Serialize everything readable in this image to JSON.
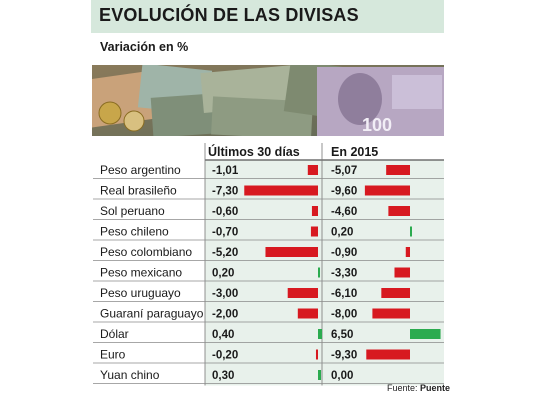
{
  "title": "EVOLUCIÓN DE LAS DIVISAS",
  "subtitle": "Variación en %",
  "source": {
    "prefix": "Fuente:",
    "name": "Puente"
  },
  "colors": {
    "negative": "#d71920",
    "positive": "#2bab4f",
    "header_bg": "#d6e8dc",
    "stripe": "#e8f1eb"
  },
  "chart_data": {
    "type": "bar",
    "categories": [
      "Peso argentino",
      "Real brasileño",
      "Sol peruano",
      "Peso chileno",
      "Peso colombiano",
      "Peso mexicano",
      "Peso uruguayo",
      "Guaraní paraguayo",
      "Dólar",
      "Euro",
      "Yuan chino"
    ],
    "series": [
      {
        "name": "Últimos 30 días",
        "values": [
          -1.01,
          -7.3,
          -0.6,
          -0.7,
          -5.2,
          0.2,
          -3.0,
          -2.0,
          0.4,
          -0.2,
          0.3
        ],
        "labels": [
          "-1,01",
          "-7,30",
          "-0,60",
          "-0,70",
          "-5,20",
          "0,20",
          "-3,00",
          "-2,00",
          "0,40",
          "-0,20",
          "0,30"
        ]
      },
      {
        "name": "En 2015",
        "values": [
          -5.07,
          -9.6,
          -4.6,
          0.2,
          -0.9,
          -3.3,
          -6.1,
          -8.0,
          6.5,
          -9.3,
          0.0
        ],
        "labels": [
          "-5,07",
          "-9,60",
          "-4,60",
          "0,20",
          "-0,90",
          "-3,30",
          "-6,10",
          "-8,00",
          "6,50",
          "-9,30",
          "0,00"
        ]
      }
    ]
  }
}
